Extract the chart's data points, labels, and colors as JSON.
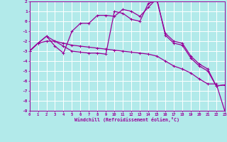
{
  "xlabel": "Windchill (Refroidissement éolien,°C)",
  "bg_color": "#b2eaea",
  "grid_color": "#ffffff",
  "line_color": "#990099",
  "xlim": [
    0,
    23
  ],
  "ylim": [
    -9,
    2
  ],
  "xticks": [
    0,
    1,
    2,
    3,
    4,
    5,
    6,
    7,
    8,
    9,
    10,
    11,
    12,
    13,
    14,
    15,
    16,
    17,
    18,
    19,
    20,
    21,
    22,
    23
  ],
  "yticks": [
    2,
    1,
    0,
    -1,
    -2,
    -3,
    -4,
    -5,
    -6,
    -7,
    -8,
    -9
  ],
  "c1": [
    -3.0,
    -2.2,
    -2.0,
    -2.0,
    -2.2,
    -2.4,
    -2.5,
    -2.6,
    -2.7,
    -2.8,
    -2.9,
    -3.0,
    -3.1,
    -3.2,
    -3.3,
    -3.5,
    -4.0,
    -4.5,
    -4.8,
    -5.2,
    -5.8,
    -6.3,
    -6.3,
    -9.0
  ],
  "c2": [
    -3.0,
    -2.2,
    -1.5,
    -2.0,
    -2.5,
    -3.0,
    -3.1,
    -3.2,
    -3.2,
    -3.3,
    1.0,
    0.8,
    0.2,
    0.0,
    1.8,
    2.1,
    -1.2,
    -2.0,
    -2.2,
    -3.5,
    -4.3,
    -4.8,
    -6.5,
    -6.4
  ],
  "c3": [
    -3.0,
    -2.2,
    -1.5,
    -2.5,
    -3.2,
    -1.0,
    -0.2,
    -0.2,
    0.6,
    0.6,
    0.5,
    1.2,
    1.0,
    0.5,
    1.4,
    2.3,
    -1.4,
    -2.2,
    -2.4,
    -3.7,
    -4.5,
    -5.0,
    -6.5,
    -6.4
  ]
}
